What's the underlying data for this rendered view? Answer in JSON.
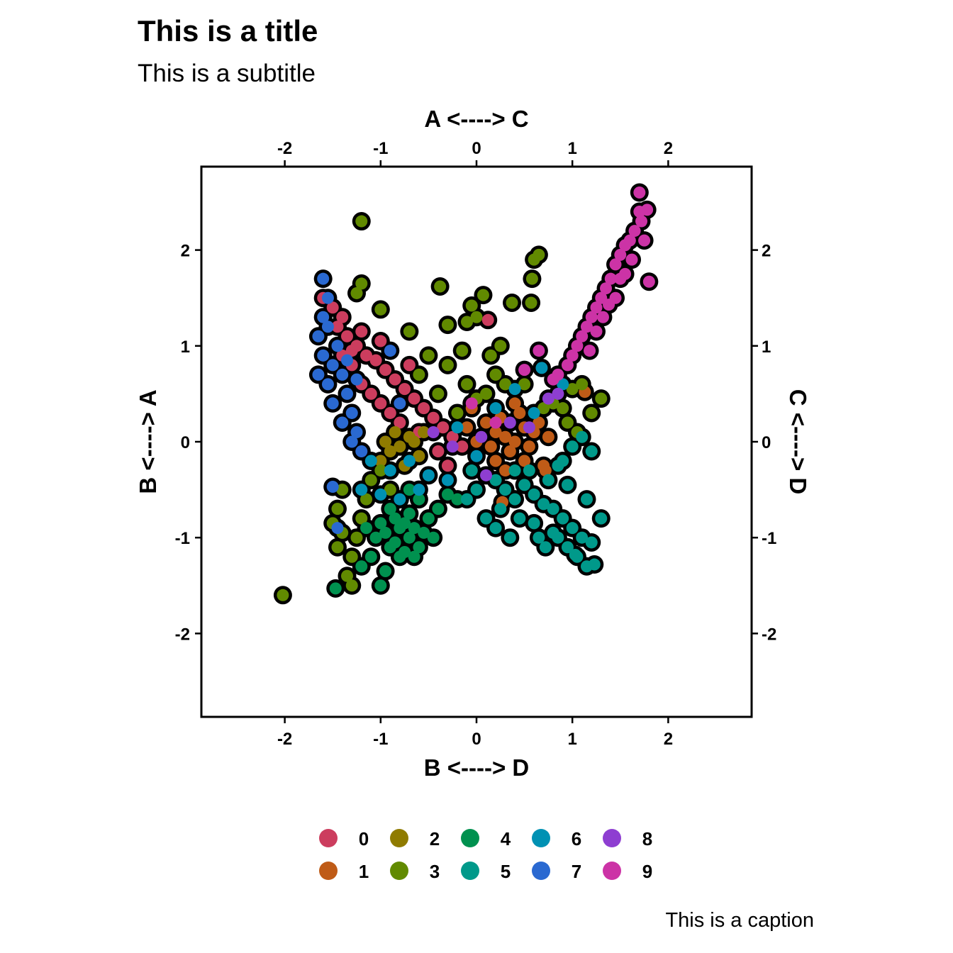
{
  "chart_data": {
    "type": "scatter",
    "title": "This is a title",
    "subtitle": "This is a subtitle",
    "caption": "This is a caption",
    "xlabel_bottom": "B  <---->  D",
    "xlabel_top": "A  <---->  C",
    "ylabel_left": "B  <---->  A",
    "ylabel_right": "C  <---->  D",
    "xlim": [
      -2.87,
      2.87
    ],
    "ylim": [
      -2.87,
      2.87
    ],
    "x_ticks": [
      "-2",
      "-1",
      "0",
      "1",
      "2"
    ],
    "y_ticks": [
      "-2",
      "-1",
      "0",
      "1",
      "2"
    ],
    "grid": false,
    "legend_position": "bottom",
    "series": [
      {
        "name": "0",
        "color": "#cc3d5e",
        "points": [
          [
            -1.6,
            1.5
          ],
          [
            -1.5,
            1.4
          ],
          [
            -1.4,
            1.3
          ],
          [
            -1.35,
            1.1
          ],
          [
            -1.25,
            1.0
          ],
          [
            -1.15,
            0.9
          ],
          [
            -1.05,
            0.85
          ],
          [
            -0.95,
            0.75
          ],
          [
            -0.85,
            0.65
          ],
          [
            -0.75,
            0.55
          ],
          [
            -0.65,
            0.45
          ],
          [
            -0.55,
            0.35
          ],
          [
            -0.45,
            0.25
          ],
          [
            -0.35,
            0.15
          ],
          [
            -0.25,
            0.05
          ],
          [
            -0.15,
            -0.05
          ],
          [
            -1.3,
            0.8
          ],
          [
            -1.2,
            0.6
          ],
          [
            -1.1,
            0.5
          ],
          [
            -1.0,
            0.4
          ],
          [
            -0.9,
            0.3
          ],
          [
            -0.8,
            0.2
          ],
          [
            -1.45,
            1.2
          ],
          [
            -1.3,
            0.95
          ],
          [
            -0.6,
            0.1
          ],
          [
            -0.4,
            -0.1
          ],
          [
            -1.0,
            1.05
          ],
          [
            -0.7,
            0.8
          ],
          [
            0.12,
            1.27
          ],
          [
            -1.4,
            0.9
          ],
          [
            -1.2,
            1.15
          ],
          [
            -0.3,
            -0.25
          ]
        ]
      },
      {
        "name": "1",
        "color": "#bf5b17",
        "points": [
          [
            0.1,
            0.2
          ],
          [
            0.2,
            0.1
          ],
          [
            0.3,
            0.05
          ],
          [
            0.4,
            0.0
          ],
          [
            0.5,
            0.15
          ],
          [
            0.6,
            0.1
          ],
          [
            0.35,
            -0.1
          ],
          [
            0.25,
            0.25
          ],
          [
            0.45,
            0.3
          ],
          [
            0.0,
            0.0
          ],
          [
            -0.1,
            0.15
          ],
          [
            0.15,
            -0.05
          ],
          [
            0.55,
            -0.05
          ],
          [
            0.65,
            0.2
          ],
          [
            0.75,
            0.05
          ],
          [
            0.5,
            -0.2
          ],
          [
            0.3,
            -0.3
          ],
          [
            0.7,
            -0.25
          ],
          [
            0.4,
            0.4
          ],
          [
            0.2,
            -0.2
          ],
          [
            1.13,
            0.52
          ],
          [
            0.27,
            -0.63
          ],
          [
            0.72,
            -0.3
          ],
          [
            -0.05,
            0.35
          ]
        ]
      },
      {
        "name": "2",
        "color": "#8f7b00",
        "points": [
          [
            -0.9,
            -0.1
          ],
          [
            -0.8,
            -0.05
          ],
          [
            -0.7,
            0.05
          ],
          [
            -1.0,
            -0.2
          ],
          [
            -0.6,
            -0.15
          ],
          [
            -0.85,
            0.1
          ],
          [
            -0.75,
            -0.25
          ],
          [
            -0.65,
            0.0
          ],
          [
            -0.95,
            0.0
          ],
          [
            -0.55,
            0.1
          ]
        ]
      },
      {
        "name": "3",
        "color": "#618a00",
        "points": [
          [
            -1.2,
            2.3
          ],
          [
            0.65,
            1.95
          ],
          [
            0.6,
            1.9
          ],
          [
            0.58,
            1.7
          ],
          [
            -0.38,
            1.62
          ],
          [
            -1.2,
            1.65
          ],
          [
            -1.25,
            1.55
          ],
          [
            0.07,
            1.53
          ],
          [
            0.37,
            1.45
          ],
          [
            0.57,
            1.45
          ],
          [
            -0.05,
            1.42
          ],
          [
            -1.0,
            1.38
          ],
          [
            -0.3,
            1.22
          ],
          [
            -0.1,
            1.25
          ],
          [
            0.0,
            1.3
          ],
          [
            -0.15,
            0.95
          ],
          [
            -0.7,
            1.15
          ],
          [
            0.25,
            1.0
          ],
          [
            0.15,
            0.9
          ],
          [
            -0.5,
            0.9
          ],
          [
            -0.3,
            0.8
          ],
          [
            -0.1,
            0.6
          ],
          [
            0.1,
            0.5
          ],
          [
            0.3,
            0.6
          ],
          [
            -2.02,
            -1.6
          ],
          [
            -1.5,
            -0.85
          ],
          [
            -1.45,
            -1.1
          ],
          [
            -1.35,
            -1.4
          ],
          [
            -1.3,
            -1.2
          ],
          [
            -1.25,
            -1.0
          ],
          [
            -1.2,
            -0.8
          ],
          [
            -1.15,
            -0.6
          ],
          [
            -1.1,
            -0.4
          ],
          [
            -1.0,
            -0.3
          ],
          [
            -0.9,
            -0.5
          ],
          [
            -1.4,
            -0.95
          ],
          [
            -1.3,
            -1.5
          ],
          [
            1.0,
            0.55
          ],
          [
            0.9,
            0.35
          ],
          [
            0.8,
            0.4
          ],
          [
            1.1,
            0.6
          ],
          [
            1.2,
            0.3
          ],
          [
            1.3,
            0.45
          ],
          [
            1.05,
            0.1
          ],
          [
            0.95,
            0.2
          ],
          [
            -0.6,
            0.7
          ],
          [
            -0.4,
            0.5
          ],
          [
            -0.2,
            0.3
          ],
          [
            0.0,
            0.45
          ],
          [
            0.2,
            0.7
          ],
          [
            0.5,
            0.6
          ],
          [
            0.7,
            0.35
          ],
          [
            -1.45,
            -0.7
          ],
          [
            -1.4,
            -0.5
          ]
        ]
      },
      {
        "name": "4",
        "color": "#00914f",
        "points": [
          [
            -0.8,
            -0.9
          ],
          [
            -0.7,
            -1.0
          ],
          [
            -0.9,
            -1.1
          ],
          [
            -0.75,
            -0.85
          ],
          [
            -0.85,
            -1.05
          ],
          [
            -0.65,
            -0.9
          ],
          [
            -0.95,
            -0.95
          ],
          [
            -0.6,
            -1.1
          ],
          [
            -0.8,
            -1.2
          ],
          [
            -0.7,
            -0.75
          ],
          [
            -1.0,
            -0.85
          ],
          [
            -0.55,
            -0.95
          ],
          [
            -0.9,
            -0.7
          ],
          [
            -0.75,
            -1.15
          ],
          [
            -0.65,
            -1.2
          ],
          [
            -1.05,
            -1.0
          ],
          [
            -1.1,
            -1.2
          ],
          [
            -0.5,
            -0.8
          ],
          [
            -0.85,
            -0.8
          ],
          [
            -1.0,
            -1.5
          ],
          [
            -0.95,
            -1.35
          ],
          [
            -0.45,
            -1.0
          ],
          [
            -1.47,
            -1.53
          ],
          [
            -1.2,
            -1.3
          ],
          [
            -0.6,
            -0.6
          ],
          [
            -0.4,
            -0.7
          ],
          [
            -0.3,
            -0.55
          ],
          [
            -0.2,
            -0.6
          ],
          [
            -0.7,
            -0.5
          ],
          [
            -1.15,
            -0.9
          ]
        ]
      },
      {
        "name": "5",
        "color": "#00998a",
        "points": [
          [
            0.2,
            -0.4
          ],
          [
            0.3,
            -0.5
          ],
          [
            0.4,
            -0.6
          ],
          [
            0.5,
            -0.45
          ],
          [
            0.6,
            -0.55
          ],
          [
            0.7,
            -0.65
          ],
          [
            0.8,
            -0.7
          ],
          [
            0.9,
            -0.8
          ],
          [
            1.0,
            -0.9
          ],
          [
            1.1,
            -1.0
          ],
          [
            1.2,
            -1.05
          ],
          [
            1.3,
            -0.8
          ],
          [
            0.85,
            -1.0
          ],
          [
            0.95,
            -1.1
          ],
          [
            1.05,
            -1.2
          ],
          [
            1.15,
            -1.3
          ],
          [
            1.23,
            -1.28
          ],
          [
            1.03,
            -1.18
          ],
          [
            0.35,
            -1.0
          ],
          [
            0.65,
            -1.0
          ],
          [
            0.72,
            -1.1
          ],
          [
            0.1,
            -0.8
          ],
          [
            0.2,
            -0.9
          ],
          [
            0.0,
            -0.5
          ],
          [
            -0.1,
            -0.6
          ],
          [
            0.45,
            -0.8
          ],
          [
            0.55,
            -0.3
          ],
          [
            0.75,
            -0.4
          ],
          [
            0.9,
            -0.2
          ],
          [
            1.0,
            -0.05
          ],
          [
            1.1,
            0.05
          ],
          [
            1.2,
            -0.1
          ],
          [
            0.6,
            -0.85
          ],
          [
            0.8,
            -0.95
          ],
          [
            1.15,
            -0.6
          ],
          [
            0.95,
            -0.45
          ],
          [
            0.85,
            -0.25
          ],
          [
            0.25,
            -0.7
          ],
          [
            0.4,
            -0.3
          ],
          [
            -0.05,
            -0.3
          ]
        ]
      },
      {
        "name": "6",
        "color": "#0091b3",
        "points": [
          [
            -1.1,
            -0.2
          ],
          [
            -0.9,
            -0.3
          ],
          [
            -0.7,
            -0.2
          ],
          [
            -0.5,
            -0.35
          ],
          [
            -0.3,
            -0.4
          ],
          [
            -1.2,
            -0.5
          ],
          [
            -1.0,
            -0.55
          ],
          [
            -0.8,
            -0.6
          ],
          [
            -0.6,
            -0.5
          ],
          [
            0.68,
            0.77
          ],
          [
            0.9,
            0.6
          ],
          [
            0.4,
            0.55
          ],
          [
            -0.2,
            0.15
          ],
          [
            0.0,
            -0.15
          ],
          [
            0.6,
            0.3
          ],
          [
            0.2,
            0.35
          ]
        ]
      },
      {
        "name": "7",
        "color": "#2a69d1",
        "points": [
          [
            -1.6,
            1.7
          ],
          [
            -1.55,
            1.5
          ],
          [
            -1.6,
            1.3
          ],
          [
            -1.65,
            1.1
          ],
          [
            -1.6,
            0.9
          ],
          [
            -1.65,
            0.7
          ],
          [
            -1.55,
            0.6
          ],
          [
            -1.5,
            0.8
          ],
          [
            -1.45,
            1.0
          ],
          [
            -1.4,
            0.7
          ],
          [
            -1.35,
            0.5
          ],
          [
            -1.3,
            0.3
          ],
          [
            -1.25,
            0.1
          ],
          [
            -1.2,
            -0.1
          ],
          [
            -1.5,
            -0.47
          ],
          [
            -1.45,
            -0.9
          ],
          [
            -1.5,
            0.4
          ],
          [
            -1.4,
            0.2
          ],
          [
            -1.3,
            0.0
          ],
          [
            -1.55,
            1.2
          ],
          [
            -1.35,
            0.85
          ],
          [
            -1.25,
            0.65
          ],
          [
            -0.9,
            0.95
          ],
          [
            -0.8,
            0.4
          ]
        ]
      },
      {
        "name": "8",
        "color": "#8e3ed1",
        "points": [
          [
            -0.25,
            -0.05
          ],
          [
            0.1,
            -0.35
          ],
          [
            0.35,
            0.2
          ],
          [
            0.75,
            0.45
          ],
          [
            -0.45,
            0.1
          ],
          [
            0.55,
            0.15
          ],
          [
            0.05,
            0.05
          ],
          [
            0.85,
            0.5
          ]
        ]
      },
      {
        "name": "9",
        "color": "#cc33a6",
        "points": [
          [
            1.7,
            2.6
          ],
          [
            1.78,
            2.42
          ],
          [
            1.7,
            2.4
          ],
          [
            1.72,
            2.3
          ],
          [
            1.65,
            2.2
          ],
          [
            1.6,
            2.1
          ],
          [
            1.55,
            2.05
          ],
          [
            1.75,
            2.1
          ],
          [
            1.5,
            1.95
          ],
          [
            1.45,
            1.85
          ],
          [
            1.62,
            1.9
          ],
          [
            1.55,
            1.75
          ],
          [
            1.4,
            1.7
          ],
          [
            1.35,
            1.6
          ],
          [
            1.3,
            1.5
          ],
          [
            1.25,
            1.4
          ],
          [
            1.2,
            1.3
          ],
          [
            1.15,
            1.2
          ],
          [
            1.1,
            1.1
          ],
          [
            1.05,
            1.0
          ],
          [
            1.0,
            0.9
          ],
          [
            0.95,
            0.8
          ],
          [
            0.85,
            0.7
          ],
          [
            0.8,
            0.65
          ],
          [
            1.38,
            1.43
          ],
          [
            1.45,
            1.5
          ],
          [
            1.32,
            1.3
          ],
          [
            1.25,
            1.15
          ],
          [
            1.8,
            1.67
          ],
          [
            1.5,
            1.7
          ],
          [
            1.18,
            0.95
          ],
          [
            0.65,
            0.95
          ],
          [
            0.5,
            0.75
          ],
          [
            -0.05,
            0.4
          ],
          [
            0.2,
            0.2
          ]
        ]
      }
    ]
  }
}
